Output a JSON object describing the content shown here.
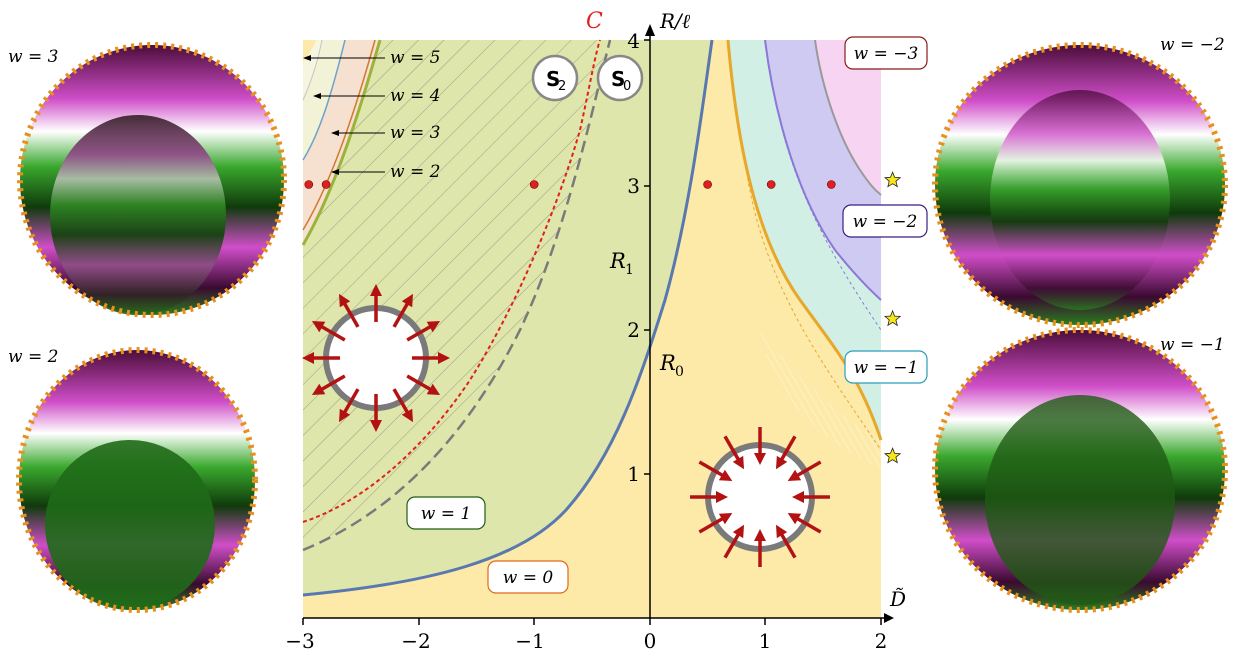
{
  "axes": {
    "xlabel": "D̃",
    "ylabel": "R/ℓ",
    "xticks": [
      "−3",
      "−2",
      "−1",
      "0",
      "1",
      "2"
    ],
    "yticks": [
      "1",
      "2",
      "3",
      "4"
    ],
    "xlim": [
      -3,
      2
    ],
    "ylim": [
      0,
      4
    ]
  },
  "curve_labels": {
    "C": "C",
    "R0": "R",
    "R0_sub": "0",
    "R1": "R",
    "R1_sub": "1"
  },
  "sphere_labels": {
    "s2": "S",
    "s2_sub": "2",
    "s0": "S",
    "s0_sub": "0"
  },
  "region_labels": {
    "w5": "w = 5",
    "w4": "w = 4",
    "w3": "w = 3",
    "w2": "w = 2",
    "w1": "w = 1",
    "w0": "w = 0",
    "wm1": "w = −1",
    "wm2": "w = −2",
    "wm3": "w = −3"
  },
  "side_labels": {
    "left_top": "w = 3",
    "left_bottom": "w = 2",
    "right_top": "w = −2",
    "right_bottom": "w = −1"
  },
  "colors": {
    "w0": "#fde9a8",
    "w1": "#dfe6ab",
    "wm1": "#d2efe6",
    "wm2": "#cfcaf2",
    "wm3": "#f6d4f2",
    "orange": "#e6a72a",
    "blue": "#5a78b0",
    "purple": "#8b78d6",
    "red": "#e02020",
    "arrow": "#b31212"
  },
  "chart_data": {
    "type": "line",
    "xlabel": "D̃",
    "ylabel": "R/ℓ",
    "xlim": [
      -3,
      2
    ],
    "ylim": [
      0,
      4
    ],
    "series": [
      {
        "name": "R",
        "x": [
          -3,
          -2.5,
          -2,
          -1.5,
          -1,
          -0.5,
          -0.2,
          0,
          0.2,
          0.5
        ],
        "y": [
          0.05,
          0.1,
          0.2,
          0.35,
          0.55,
          0.95,
          1.4,
          1.85,
          2.6,
          4.0
        ]
      },
      {
        "name": "C",
        "x": [
          -3,
          -2.5,
          -2,
          -1.5,
          -1,
          -0.8,
          -0.6,
          -0.5
        ],
        "y": [
          0.7,
          0.9,
          1.3,
          1.8,
          2.55,
          2.95,
          3.5,
          4.0
        ]
      },
      {
        "x": [
          -3,
          -2.5,
          -2,
          -1.5,
          -1,
          -0.5,
          -0.2
        ],
        "y": [
          0.5,
          0.9,
          1.4,
          1.95,
          2.6,
          3.4,
          4.0
        ]
      },
      {
        "x": [
          0.7,
          0.8,
          1,
          1.3,
          1.6,
          2.0
        ],
        "y": [
          4.0,
          2.6,
          2.05,
          1.65,
          1.4,
          1.2
        ]
      },
      {
        "x": [
          -3,
          -2.85,
          -2.75,
          -2.65
        ],
        "y": [
          2.6,
          3.3,
          3.7,
          4.0
        ]
      },
      {
        "x": [
          -3,
          -2.88,
          -2.8,
          -2.72
        ],
        "y": [
          3.2,
          3.6,
          3.8,
          4.0
        ]
      },
      {
        "x": [
          1.3,
          1.45,
          1.7,
          2.0
        ],
        "y": [
          4.0,
          3.3,
          2.7,
          2.2
        ]
      }
    ],
    "points": [
      {
        "x": -2.95,
        "y": 3
      },
      {
        "x": -2.8,
        "y": 3
      },
      {
        "x": -1,
        "y": 3
      },
      {
        "x": 0.5,
        "y": 3
      },
      {
        "x": 1.05,
        "y": 3
      },
      {
        "x": 1.57,
        "y": 3
      }
    ],
    "stars": [
      {
        "x": 2.1,
        "y": 3.03
      },
      {
        "x": 2.1,
        "y": 2.07
      },
      {
        "x": 2.1,
        "y": 1.12
      }
    ]
  }
}
